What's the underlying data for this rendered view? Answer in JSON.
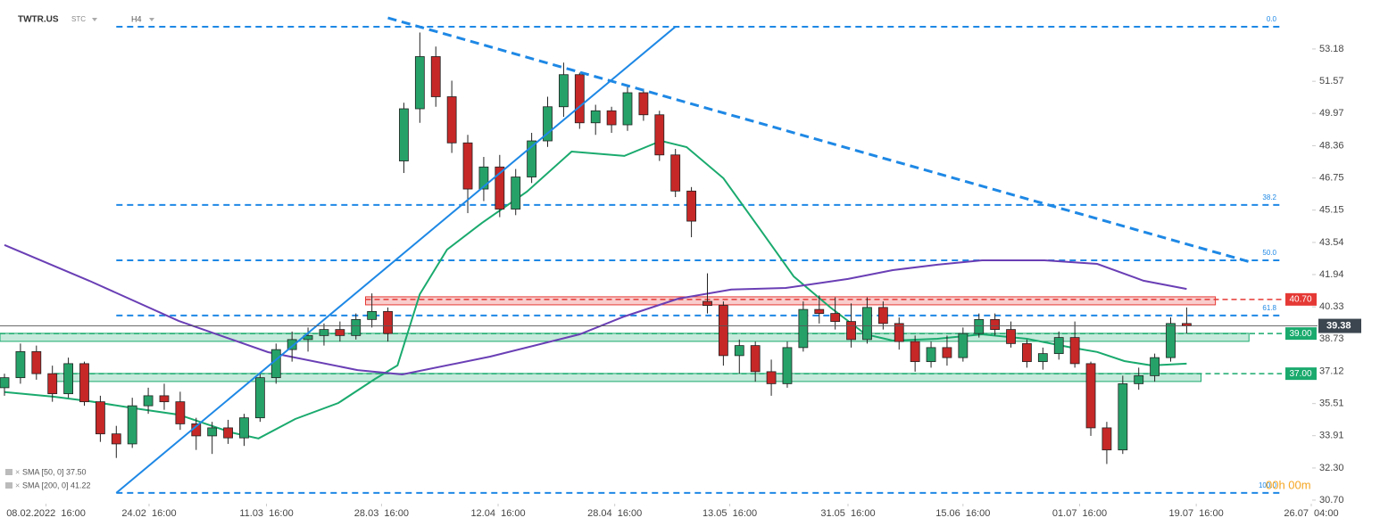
{
  "chart_data": {
    "type": "candlestick",
    "symbol": "TWTR.US",
    "market": "STC",
    "timeframe": "H4",
    "up_color": "#26a269",
    "down_color": "#c62828",
    "candles": [
      [
        36.3,
        37.0,
        35.9,
        36.8
      ],
      [
        36.8,
        38.5,
        36.5,
        38.1
      ],
      [
        38.1,
        38.4,
        36.7,
        37.0
      ],
      [
        37.0,
        37.4,
        35.6,
        36.0
      ],
      [
        36.0,
        37.8,
        35.8,
        37.5
      ],
      [
        37.5,
        37.6,
        35.4,
        35.6
      ],
      [
        35.6,
        35.9,
        33.6,
        34.0
      ],
      [
        34.0,
        34.4,
        32.8,
        33.5
      ],
      [
        33.5,
        35.8,
        33.3,
        35.4
      ],
      [
        35.4,
        36.3,
        35.0,
        35.9
      ],
      [
        35.9,
        36.5,
        35.2,
        35.6
      ],
      [
        35.6,
        36.1,
        34.2,
        34.5
      ],
      [
        34.5,
        34.8,
        33.2,
        33.9
      ],
      [
        33.9,
        34.6,
        33.0,
        34.3
      ],
      [
        34.3,
        34.7,
        33.5,
        33.8
      ],
      [
        33.8,
        35.0,
        33.4,
        34.8
      ],
      [
        34.8,
        37.0,
        34.6,
        36.8
      ],
      [
        36.8,
        38.5,
        36.5,
        38.2
      ],
      [
        38.2,
        39.1,
        37.6,
        38.7
      ],
      [
        38.7,
        39.3,
        38.1,
        38.9
      ],
      [
        38.9,
        39.5,
        38.4,
        39.2
      ],
      [
        39.2,
        39.6,
        38.6,
        38.9
      ],
      [
        38.9,
        40.0,
        38.7,
        39.7
      ],
      [
        39.7,
        41.0,
        39.3,
        40.1
      ],
      [
        40.1,
        40.3,
        38.6,
        39.0
      ],
      [
        47.6,
        50.5,
        47.0,
        50.2
      ],
      [
        50.2,
        54.0,
        49.5,
        52.8
      ],
      [
        52.8,
        53.3,
        50.3,
        50.8
      ],
      [
        50.8,
        51.6,
        48.0,
        48.5
      ],
      [
        48.5,
        48.9,
        45.0,
        46.2
      ],
      [
        46.2,
        47.8,
        45.6,
        47.3
      ],
      [
        47.3,
        47.9,
        44.8,
        45.2
      ],
      [
        45.2,
        47.2,
        44.9,
        46.8
      ],
      [
        46.8,
        49.0,
        46.5,
        48.6
      ],
      [
        48.6,
        50.8,
        48.3,
        50.3
      ],
      [
        50.3,
        52.5,
        49.8,
        51.9
      ],
      [
        51.9,
        52.0,
        49.2,
        49.5
      ],
      [
        49.5,
        50.4,
        48.9,
        50.1
      ],
      [
        50.1,
        50.3,
        49.0,
        49.4
      ],
      [
        49.4,
        51.3,
        49.1,
        51.0
      ],
      [
        51.0,
        51.2,
        49.6,
        49.9
      ],
      [
        49.9,
        50.1,
        47.6,
        47.9
      ],
      [
        47.9,
        48.2,
        45.8,
        46.1
      ],
      [
        46.1,
        46.3,
        43.8,
        44.6
      ],
      [
        40.6,
        42.0,
        40.0,
        40.4
      ],
      [
        40.4,
        40.6,
        37.4,
        37.9
      ],
      [
        37.9,
        38.7,
        37.0,
        38.4
      ],
      [
        38.4,
        38.6,
        36.6,
        37.1
      ],
      [
        37.1,
        37.7,
        35.9,
        36.5
      ],
      [
        36.5,
        38.6,
        36.3,
        38.3
      ],
      [
        38.3,
        40.6,
        38.1,
        40.2
      ],
      [
        40.2,
        40.9,
        39.5,
        40.0
      ],
      [
        40.0,
        40.8,
        39.2,
        39.6
      ],
      [
        39.6,
        40.5,
        38.3,
        38.7
      ],
      [
        38.7,
        40.8,
        38.5,
        40.3
      ],
      [
        40.3,
        40.6,
        39.2,
        39.5
      ],
      [
        39.5,
        39.8,
        38.2,
        38.6
      ],
      [
        38.6,
        38.9,
        37.1,
        37.6
      ],
      [
        37.6,
        38.6,
        37.3,
        38.3
      ],
      [
        38.3,
        38.9,
        37.4,
        37.8
      ],
      [
        37.8,
        39.3,
        37.6,
        39.0
      ],
      [
        39.0,
        40.0,
        38.8,
        39.7
      ],
      [
        39.7,
        40.0,
        38.9,
        39.2
      ],
      [
        39.2,
        39.6,
        38.3,
        38.5
      ],
      [
        38.5,
        38.7,
        37.3,
        37.6
      ],
      [
        37.6,
        38.3,
        37.2,
        38.0
      ],
      [
        38.0,
        39.1,
        37.7,
        38.8
      ],
      [
        38.8,
        39.6,
        37.3,
        37.5
      ],
      [
        37.5,
        37.6,
        33.9,
        34.3
      ],
      [
        34.3,
        34.6,
        32.5,
        33.2
      ],
      [
        33.2,
        36.9,
        33.0,
        36.5
      ],
      [
        36.5,
        37.3,
        36.2,
        36.9
      ],
      [
        36.9,
        38.0,
        36.6,
        37.8
      ],
      [
        37.8,
        39.8,
        37.6,
        39.5
      ],
      [
        39.5,
        40.3,
        39.0,
        39.38
      ]
    ],
    "xlim": [
      -0.28,
      79.9
    ],
    "ylim": [
      30.52,
      55.62
    ],
    "yticks": [
      53.18,
      51.57,
      49.97,
      48.36,
      46.75,
      45.15,
      43.54,
      41.94,
      40.33,
      38.73,
      37.12,
      35.51,
      33.91,
      {
        "value": 32.3,
        "label": "32.30"
      },
      {
        "value": 30.7,
        "label": "30.70"
      }
    ],
    "xticks": [
      {
        "value": 2.6,
        "label": "08.02.2022  16:00"
      },
      {
        "value": 9.05,
        "label": "24.02  16:00"
      },
      {
        "value": 16.4,
        "label": "11.03  16:00"
      },
      {
        "value": 23.6,
        "label": "28.03  16:00"
      },
      {
        "value": 30.9,
        "label": "12.04  16:00"
      },
      {
        "value": 38.2,
        "label": "28.04  16:00"
      },
      {
        "value": 45.4,
        "label": "13.05  16:00"
      },
      {
        "value": 52.8,
        "label": "31.05  16:00"
      },
      {
        "value": 60.0,
        "label": "15.06  16:00"
      },
      {
        "value": 67.3,
        "label": "01.07  16:00"
      },
      {
        "value": 74.6,
        "label": "19.07  16:00"
      },
      {
        "value": 81.8,
        "label": "26.07  04:00"
      }
    ],
    "sma": [
      {
        "name": "SMA [50, 0] 37.50",
        "color": "#1aaa6e",
        "x": [
          0.0,
          3.1,
          5.3,
          8.1,
          10.9,
          14.2,
          15.9,
          18.2,
          20.9,
          23.2,
          24.6,
          26.0,
          27.7,
          29.9,
          32.7,
          35.5,
          38.8,
          41.1,
          42.7,
          45.0,
          47.2,
          49.4,
          51.7,
          53.9,
          55.6,
          58.4,
          61.2,
          64.0,
          66.8,
          68.4,
          70.1,
          71.8,
          74.0
        ],
        "values": [
          36.08,
          35.85,
          35.63,
          35.28,
          34.96,
          34.07,
          33.77,
          34.74,
          35.54,
          36.74,
          37.41,
          40.96,
          43.18,
          44.52,
          46.07,
          48.07,
          47.85,
          48.6,
          48.29,
          46.74,
          44.3,
          41.85,
          40.3,
          38.96,
          38.65,
          38.74,
          38.96,
          38.74,
          38.3,
          38.08,
          37.63,
          37.41,
          37.5
        ]
      },
      {
        "name": "SMA [200, 0] 41.22",
        "color": "#6a3fb5",
        "x": [
          0.0,
          5.3,
          10.9,
          16.5,
          22.1,
          24.9,
          30.4,
          36.0,
          38.8,
          42.2,
          45.5,
          48.9,
          52.8,
          55.6,
          58.4,
          61.2,
          65.1,
          68.4,
          71.3,
          74.0
        ],
        "values": [
          43.41,
          41.63,
          39.63,
          38.07,
          37.18,
          36.96,
          37.85,
          38.96,
          39.85,
          40.74,
          41.19,
          41.27,
          41.72,
          42.16,
          42.43,
          42.65,
          42.65,
          42.47,
          41.63,
          41.22
        ]
      }
    ],
    "trendlines": [
      {
        "x": [
          7.0,
          42.0
        ],
        "values": [
          31.06,
          54.29
        ],
        "dashed": false
      },
      {
        "x": [
          24.0,
          77.9
        ],
        "values": [
          54.73,
          42.58
        ],
        "dashed": true
      }
    ],
    "fib_x": [
      7.0,
      79.9
    ],
    "fib_levels": [
      {
        "label": "0.0",
        "price": 54.29
      },
      {
        "label": "38.2",
        "price": 45.41
      },
      {
        "label": "50.0",
        "price": 42.65
      },
      {
        "label": "61.8",
        "price": 39.9
      },
      {
        "label": "100.0",
        "price": 31.06
      }
    ],
    "zones": [
      {
        "x": [
          22.6,
          75.8
        ],
        "range": [
          40.43,
          40.83
        ],
        "level": {
          "value": 40.7,
          "label": "40.70"
        },
        "color": "#e53935"
      },
      {
        "x": [
          -0.28,
          77.9
        ],
        "range": [
          38.61,
          39.01
        ],
        "level": {
          "value": 39.0,
          "label": "39.00"
        },
        "color": "#1aaa6e"
      },
      {
        "x": [
          3.1,
          74.9
        ],
        "range": [
          36.61,
          37.01
        ],
        "level": {
          "value": 37.0,
          "label": "37.00"
        },
        "color": "#1aaa6e"
      }
    ],
    "last_price": 39.38,
    "countdown": "00h 00m"
  }
}
